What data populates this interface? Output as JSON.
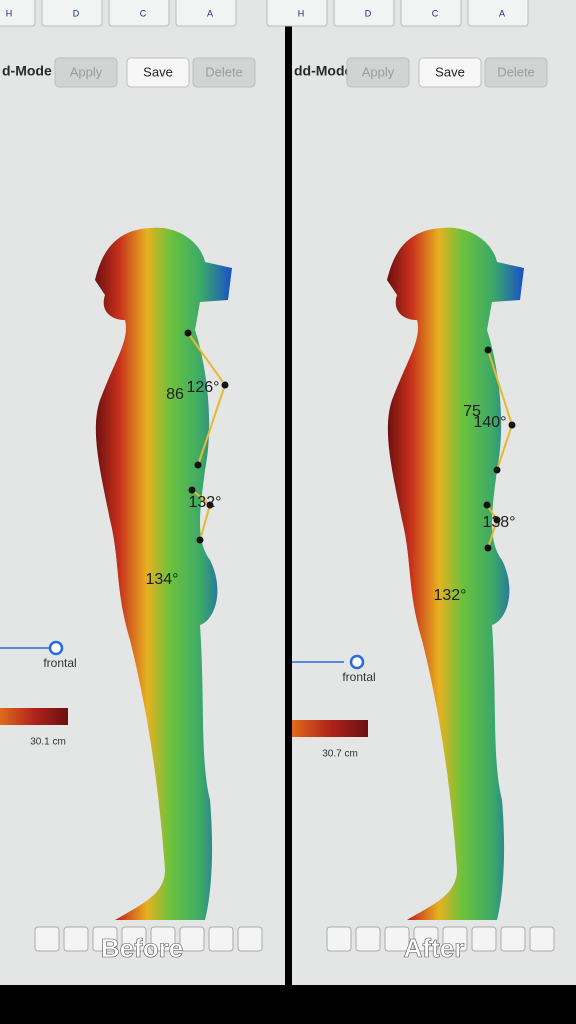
{
  "panels": [
    {
      "caption": "Before",
      "mode_label": "d-Mode",
      "buttons": [
        "Apply",
        "Save",
        "Delete"
      ],
      "tool_icons": [
        "H",
        "D",
        "C",
        "A"
      ],
      "angles": [
        "86",
        "126°",
        "132°",
        "134°"
      ],
      "slider_label": "frontal",
      "scale_label": "30.1 cm"
    },
    {
      "caption": "After",
      "mode_label": "dd-Mode",
      "buttons": [
        "Apply",
        "Save",
        "Delete"
      ],
      "tool_icons": [
        "H",
        "D",
        "C",
        "A"
      ],
      "angles": [
        "75",
        "140°",
        "138°",
        "132°"
      ],
      "slider_label": "frontal",
      "scale_label": "30.7 cm"
    }
  ]
}
